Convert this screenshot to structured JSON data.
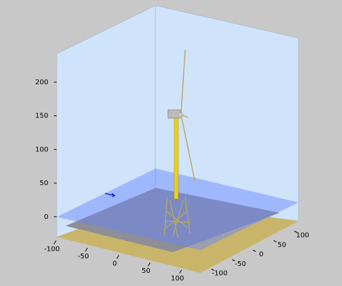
{
  "chart_data": {
    "type": "scene3d",
    "xlim": [
      -120,
      120
    ],
    "xticks": [
      -100,
      -50,
      0,
      50,
      100
    ],
    "ylim": [
      -120,
      120
    ],
    "yticks": [
      -100,
      -50,
      0,
      50,
      100
    ],
    "zlim": [
      -30,
      240
    ],
    "zticks": [
      0,
      50,
      100,
      150,
      200
    ]
  }
}
